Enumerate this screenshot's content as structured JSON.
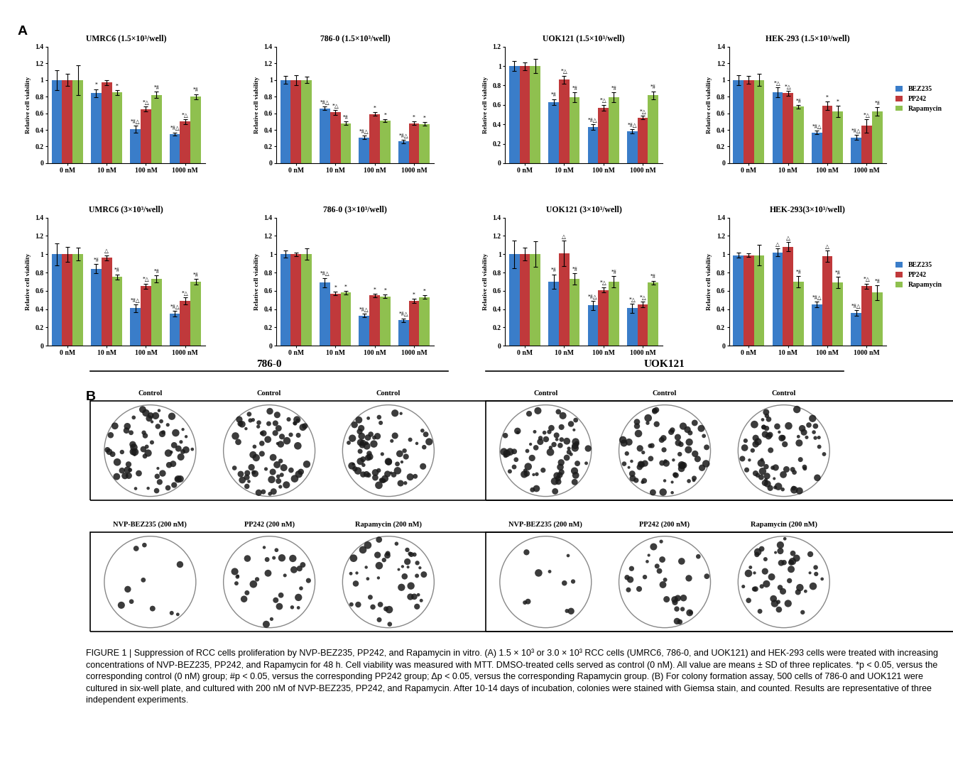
{
  "panel_labels": [
    "A",
    "B"
  ],
  "chart_data": [
    {
      "type": "bar",
      "title": "UMRC6 (1.5×10³/well)",
      "categories": [
        "0 nM",
        "10 nM",
        "100 nM",
        "1000 nM"
      ],
      "ylabel": "Relative cell viability",
      "ylim": [
        0,
        1.4
      ],
      "yticks": [
        0,
        0.2,
        0.4,
        0.6,
        0.8,
        1,
        1.2,
        1.4
      ],
      "series": [
        {
          "name": "BEZ235",
          "color": "#3a7dc9",
          "values": [
            1,
            0.84,
            0.41,
            0.35
          ],
          "errors": [
            0.12,
            0.05,
            0.04,
            0.02
          ],
          "significance": [
            "",
            "*",
            "*#△",
            "*#△"
          ]
        },
        {
          "name": "PP242",
          "color": "#c0393b",
          "values": [
            1,
            0.97,
            0.65,
            0.5
          ],
          "errors": [
            0.07,
            0.03,
            0.03,
            0.03
          ],
          "significance": [
            "",
            "",
            "*△",
            "*△"
          ]
        },
        {
          "name": "Rapamycin",
          "color": "#8fc04f",
          "values": [
            1,
            0.85,
            0.82,
            0.8
          ],
          "errors": [
            0.18,
            0.03,
            0.04,
            0.03
          ],
          "significance": [
            "",
            "*",
            "*#",
            "*#"
          ]
        }
      ]
    },
    {
      "type": "bar",
      "title": "786-0 (1.5×10³/well)",
      "categories": [
        "0 nM",
        "10 nM",
        "100 nM",
        "1000 nM"
      ],
      "ylabel": "Relative cell viability",
      "ylim": [
        0,
        1.4
      ],
      "yticks": [
        0,
        0.2,
        0.4,
        0.6,
        0.8,
        1,
        1.2,
        1.4
      ],
      "series": [
        {
          "name": "BEZ235",
          "color": "#3a7dc9",
          "values": [
            1,
            0.66,
            0.31,
            0.26
          ],
          "errors": [
            0.05,
            0.02,
            0.02,
            0.02
          ],
          "significance": [
            "",
            "*#△",
            "*#△",
            "*#△"
          ]
        },
        {
          "name": "PP242",
          "color": "#c0393b",
          "values": [
            1,
            0.61,
            0.59,
            0.48
          ],
          "errors": [
            0.06,
            0.03,
            0.02,
            0.02
          ],
          "significance": [
            "",
            "*△",
            "*",
            "*"
          ]
        },
        {
          "name": "Rapamycin",
          "color": "#8fc04f",
          "values": [
            1,
            0.48,
            0.51,
            0.47
          ],
          "errors": [
            0.04,
            0.02,
            0.02,
            0.02
          ],
          "significance": [
            "",
            "*#",
            "*",
            "*"
          ]
        }
      ]
    },
    {
      "type": "bar",
      "title": "UOK121 (1.5×10³/well)",
      "categories": [
        "0 nM",
        "10 nM",
        "100 nM",
        "1000 nM"
      ],
      "ylabel": "Relative cell viability",
      "ylim": [
        0,
        1.2
      ],
      "yticks": [
        0,
        0.2,
        0.4,
        0.6,
        0.8,
        1,
        1.2
      ],
      "series": [
        {
          "name": "BEZ235",
          "color": "#3a7dc9",
          "values": [
            1,
            0.63,
            0.37,
            0.33
          ],
          "errors": [
            0.05,
            0.03,
            0.03,
            0.02
          ],
          "significance": [
            "",
            "*#",
            "*#△",
            "*#△"
          ]
        },
        {
          "name": "PP242",
          "color": "#c0393b",
          "values": [
            1,
            0.86,
            0.57,
            0.47
          ],
          "errors": [
            0.04,
            0.04,
            0.03,
            0.02
          ],
          "significance": [
            "",
            "*△",
            "*△",
            "*△"
          ]
        },
        {
          "name": "Rapamycin",
          "color": "#8fc04f",
          "values": [
            1,
            0.68,
            0.68,
            0.7
          ],
          "errors": [
            0.07,
            0.05,
            0.05,
            0.04
          ],
          "significance": [
            "",
            "*#",
            "*#",
            "*#"
          ]
        }
      ]
    },
    {
      "type": "bar",
      "title": "HEK-293 (1.5×10³/well)",
      "categories": [
        "0 nM",
        "10 nM",
        "100 nM",
        "1000 nM"
      ],
      "ylabel": "Relative cell viability",
      "ylim": [
        0,
        1.4
      ],
      "yticks": [
        0,
        0.2,
        0.4,
        0.6,
        0.8,
        1,
        1.2,
        1.4
      ],
      "legend": "right",
      "series": [
        {
          "name": "BEZ235",
          "color": "#3a7dc9",
          "values": [
            1,
            0.85,
            0.37,
            0.31
          ],
          "errors": [
            0.06,
            0.06,
            0.02,
            0.03
          ],
          "significance": [
            "",
            "*△",
            "*#△",
            "*#△"
          ]
        },
        {
          "name": "PP242",
          "color": "#c0393b",
          "values": [
            1,
            0.84,
            0.69,
            0.45
          ],
          "errors": [
            0.05,
            0.03,
            0.05,
            0.08
          ],
          "significance": [
            "",
            "*△",
            "*",
            "*△"
          ]
        },
        {
          "name": "Rapamycin",
          "color": "#8fc04f",
          "values": [
            1,
            0.68,
            0.62,
            0.62
          ],
          "errors": [
            0.07,
            0.02,
            0.07,
            0.05
          ],
          "significance": [
            "",
            "*#",
            "*",
            "*#"
          ]
        }
      ]
    },
    {
      "type": "bar",
      "title": "UMRC6 (3×10³/well)",
      "categories": [
        "0 nM",
        "10 nM",
        "100 nM",
        "1000 nM"
      ],
      "ylabel": "Relative cell viability",
      "ylim": [
        0,
        1.4
      ],
      "yticks": [
        0,
        0.2,
        0.4,
        0.6,
        0.8,
        1,
        1.2,
        1.4
      ],
      "series": [
        {
          "name": "BEZ235",
          "color": "#3a7dc9",
          "values": [
            1,
            0.84,
            0.41,
            0.35
          ],
          "errors": [
            0.12,
            0.05,
            0.04,
            0.03
          ],
          "significance": [
            "",
            "*#",
            "*#△",
            "*#△"
          ]
        },
        {
          "name": "PP242",
          "color": "#c0393b",
          "values": [
            1,
            0.96,
            0.65,
            0.49
          ],
          "errors": [
            0.08,
            0.03,
            0.03,
            0.04
          ],
          "significance": [
            "",
            "△",
            "*△",
            "*△"
          ]
        },
        {
          "name": "Rapamycin",
          "color": "#8fc04f",
          "values": [
            1,
            0.75,
            0.73,
            0.7
          ],
          "errors": [
            0.07,
            0.03,
            0.04,
            0.03
          ],
          "significance": [
            "",
            "*#",
            "*#",
            "*#"
          ]
        }
      ]
    },
    {
      "type": "bar",
      "title": "786-0 (3×10³/well)",
      "categories": [
        "0 nM",
        "10 nM",
        "100 nM",
        "1000 nM"
      ],
      "ylabel": "Relative cell viability",
      "ylim": [
        0,
        1.4
      ],
      "yticks": [
        0,
        0.2,
        0.4,
        0.6,
        0.8,
        1,
        1.2,
        1.4
      ],
      "series": [
        {
          "name": "BEZ235",
          "color": "#3a7dc9",
          "values": [
            1,
            0.69,
            0.33,
            0.28
          ],
          "errors": [
            0.04,
            0.05,
            0.02,
            0.02
          ],
          "significance": [
            "",
            "*#△",
            "*#△",
            "*#△"
          ]
        },
        {
          "name": "PP242",
          "color": "#c0393b",
          "values": [
            1,
            0.57,
            0.55,
            0.49
          ],
          "errors": [
            0.02,
            0.02,
            0.02,
            0.02
          ],
          "significance": [
            "",
            "*",
            "*",
            "*"
          ]
        },
        {
          "name": "Rapamycin",
          "color": "#8fc04f",
          "values": [
            1,
            0.58,
            0.54,
            0.53
          ],
          "errors": [
            0.06,
            0.02,
            0.02,
            0.02
          ],
          "significance": [
            "",
            "*",
            "*",
            "*"
          ]
        }
      ]
    },
    {
      "type": "bar",
      "title": "UOK121 (3×10³/well)",
      "categories": [
        "0 nM",
        "10 nM",
        "100 nM",
        "1000 nM"
      ],
      "ylabel": "Relative cell viability",
      "ylim": [
        0,
        1.4
      ],
      "yticks": [
        0,
        0.2,
        0.4,
        0.6,
        0.8,
        1,
        1.2,
        1.4
      ],
      "series": [
        {
          "name": "BEZ235",
          "color": "#3a7dc9",
          "values": [
            1,
            0.7,
            0.44,
            0.41
          ],
          "errors": [
            0.15,
            0.08,
            0.05,
            0.05
          ],
          "significance": [
            "",
            "*#",
            "*#△",
            "*△"
          ]
        },
        {
          "name": "PP242",
          "color": "#c0393b",
          "values": [
            1,
            1.01,
            0.61,
            0.45
          ],
          "errors": [
            0.07,
            0.14,
            0.03,
            0.03
          ],
          "significance": [
            "",
            "△",
            "*△",
            "*△"
          ]
        },
        {
          "name": "Rapamycin",
          "color": "#8fc04f",
          "values": [
            1,
            0.73,
            0.7,
            0.69
          ],
          "errors": [
            0.14,
            0.06,
            0.06,
            0.02
          ],
          "significance": [
            "",
            "*#",
            "*#",
            "*#"
          ]
        }
      ]
    },
    {
      "type": "bar",
      "title": "HEK-293(3×10³/well)",
      "categories": [
        "0 nM",
        "10 nM",
        "100 nM",
        "1000 nM"
      ],
      "ylabel": "Relative cell viability",
      "ylim": [
        0,
        1.4
      ],
      "yticks": [
        0,
        0.2,
        0.4,
        0.6,
        0.8,
        1,
        1.2,
        1.4
      ],
      "legend": "right",
      "series": [
        {
          "name": "BEZ235",
          "color": "#3a7dc9",
          "values": [
            0.99,
            1.02,
            0.45,
            0.36
          ],
          "errors": [
            0.03,
            0.04,
            0.03,
            0.03
          ],
          "significance": [
            "",
            "△",
            "*#△",
            "*#△"
          ]
        },
        {
          "name": "PP242",
          "color": "#c0393b",
          "values": [
            0.99,
            1.08,
            0.98,
            0.65
          ],
          "errors": [
            0.02,
            0.05,
            0.06,
            0.03
          ],
          "significance": [
            "",
            "△",
            "△",
            "*△"
          ]
        },
        {
          "name": "Rapamycin",
          "color": "#8fc04f",
          "values": [
            0.99,
            0.7,
            0.69,
            0.58
          ],
          "errors": [
            0.11,
            0.06,
            0.06,
            0.08
          ],
          "significance": [
            "",
            "*#",
            "*#",
            "*#"
          ]
        }
      ]
    }
  ],
  "panel_B": {
    "groups": [
      {
        "title": "786-0",
        "rows": [
          [
            "Control",
            "Control",
            "Control"
          ],
          [
            "NVP-BEZ235 (200 nM)",
            "PP242 (200 nM)",
            "Rapamycin (200 nM)"
          ]
        ]
      },
      {
        "title": "UOK121",
        "rows": [
          [
            "Control",
            "Control",
            "Control"
          ],
          [
            "NVP-BEZ235 (200 nM)",
            "PP242 (200 nM)",
            "Rapamycin (200 nM)"
          ]
        ]
      }
    ]
  },
  "caption": "FIGURE 1 | Suppression of RCC cells proliferation by NVP-BEZ235, PP242, and Rapamycin in vitro. (A) 1.5 × 10³ or 3.0 × 10³ RCC cells (UMRC6, 786-0, and UOK121) and HEK-293 cells were treated with increasing concentrations of NVP-BEZ235, PP242, and Rapamycin for 48 h. Cell viability was measured with MTT. DMSO-treated cells served as control (0 nM). All value are means ± SD of three replicates. *p < 0.05, versus the corresponding control (0 nM) group; #p < 0.05, versus the corresponding PP242 group; Δp < 0.05, versus the corresponding Rapamycin group. (B) For colony formation assay, 500 cells of 786-0 and UOK121 were cultured in six-well plate, and cultured with 200 nM of NVP-BEZ235, PP242, and Rapamycin. After 10-14 days of incubation, colonies were stained with Giemsa stain, and counted. Results are representative of three independent experiments."
}
